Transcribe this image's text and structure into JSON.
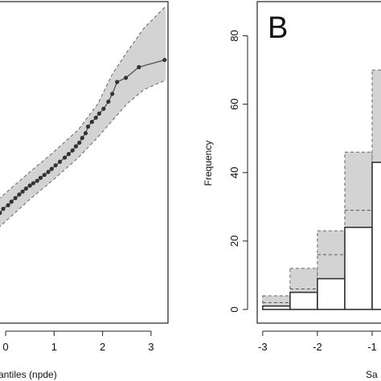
{
  "chart_data": [
    {
      "type": "scatter",
      "panel": "A",
      "xlabel": "antiles (npde)",
      "xticks": [
        0,
        1,
        2,
        3
      ],
      "xlim": [
        -0.15,
        3.35
      ],
      "ylim": [
        -2.4,
        3.0
      ],
      "colors": {
        "band": "#d3d3d3",
        "points": "#333333",
        "line": "#555555"
      },
      "points": [
        [
          -0.12,
          -0.55
        ],
        [
          -0.05,
          -0.48
        ],
        [
          0.05,
          -0.42
        ],
        [
          0.12,
          -0.36
        ],
        [
          0.2,
          -0.3
        ],
        [
          0.28,
          -0.24
        ],
        [
          0.35,
          -0.19
        ],
        [
          0.42,
          -0.14
        ],
        [
          0.5,
          -0.09
        ],
        [
          0.57,
          -0.05
        ],
        [
          0.65,
          -0.01
        ],
        [
          0.72,
          0.04
        ],
        [
          0.8,
          0.09
        ],
        [
          0.88,
          0.14
        ],
        [
          0.95,
          0.19
        ],
        [
          1.03,
          0.25
        ],
        [
          1.12,
          0.31
        ],
        [
          1.22,
          0.38
        ],
        [
          1.3,
          0.44
        ],
        [
          1.38,
          0.5
        ],
        [
          1.45,
          0.57
        ],
        [
          1.52,
          0.63
        ],
        [
          1.58,
          0.71
        ],
        [
          1.65,
          0.79
        ],
        [
          1.7,
          0.9
        ],
        [
          1.78,
          0.98
        ],
        [
          1.86,
          1.05
        ],
        [
          1.93,
          1.12
        ],
        [
          2.02,
          1.2
        ],
        [
          2.12,
          1.32
        ],
        [
          2.2,
          1.45
        ],
        [
          2.3,
          1.65
        ],
        [
          2.48,
          1.72
        ],
        [
          2.75,
          1.9
        ],
        [
          3.28,
          2.02
        ]
      ],
      "band_upper": [
        [
          -0.15,
          -0.32
        ],
        [
          0.5,
          0.14
        ],
        [
          1.0,
          0.48
        ],
        [
          1.5,
          0.85
        ],
        [
          1.9,
          1.28
        ],
        [
          2.2,
          1.78
        ],
        [
          2.5,
          2.15
        ],
        [
          2.85,
          2.55
        ],
        [
          3.3,
          2.92
        ]
      ],
      "band_lower": [
        [
          -0.15,
          -0.8
        ],
        [
          0.5,
          -0.32
        ],
        [
          1.0,
          0.02
        ],
        [
          1.5,
          0.38
        ],
        [
          1.9,
          0.72
        ],
        [
          2.2,
          1.0
        ],
        [
          2.5,
          1.28
        ],
        [
          2.85,
          1.52
        ],
        [
          3.3,
          1.68
        ]
      ]
    },
    {
      "type": "bar",
      "panel": "B",
      "panel_label": "B",
      "ylabel": "Frequency",
      "xlabel": "Sa",
      "xticks": [
        -3,
        -2,
        -1
      ],
      "xtick_labels": [
        "-3",
        "-2",
        "-1"
      ],
      "yticks": [
        0,
        20,
        40,
        60,
        80
      ],
      "ylim": [
        -4,
        90
      ],
      "xlim": [
        -3.1,
        -0.75
      ],
      "colors": {
        "band": "#d3d3d3",
        "bars": "#ffffff",
        "edge": "#333333"
      },
      "bins": [
        {
          "x0": -3.0,
          "x1": -2.5,
          "value": 1,
          "band": [
            1,
            4
          ],
          "median": 2
        },
        {
          "x0": -2.5,
          "x1": -2.0,
          "value": 5,
          "band": [
            3,
            12
          ],
          "median": 6
        },
        {
          "x0": -2.0,
          "x1": -1.5,
          "value": 9,
          "band": [
            8,
            23
          ],
          "median": 16
        },
        {
          "x0": -1.5,
          "x1": -1.0,
          "value": 24,
          "band": [
            17,
            46
          ],
          "median": 29
        },
        {
          "x0": -1.0,
          "x1": -0.5,
          "value": 43,
          "band": [
            28,
            70
          ],
          "median": 43
        }
      ]
    }
  ]
}
